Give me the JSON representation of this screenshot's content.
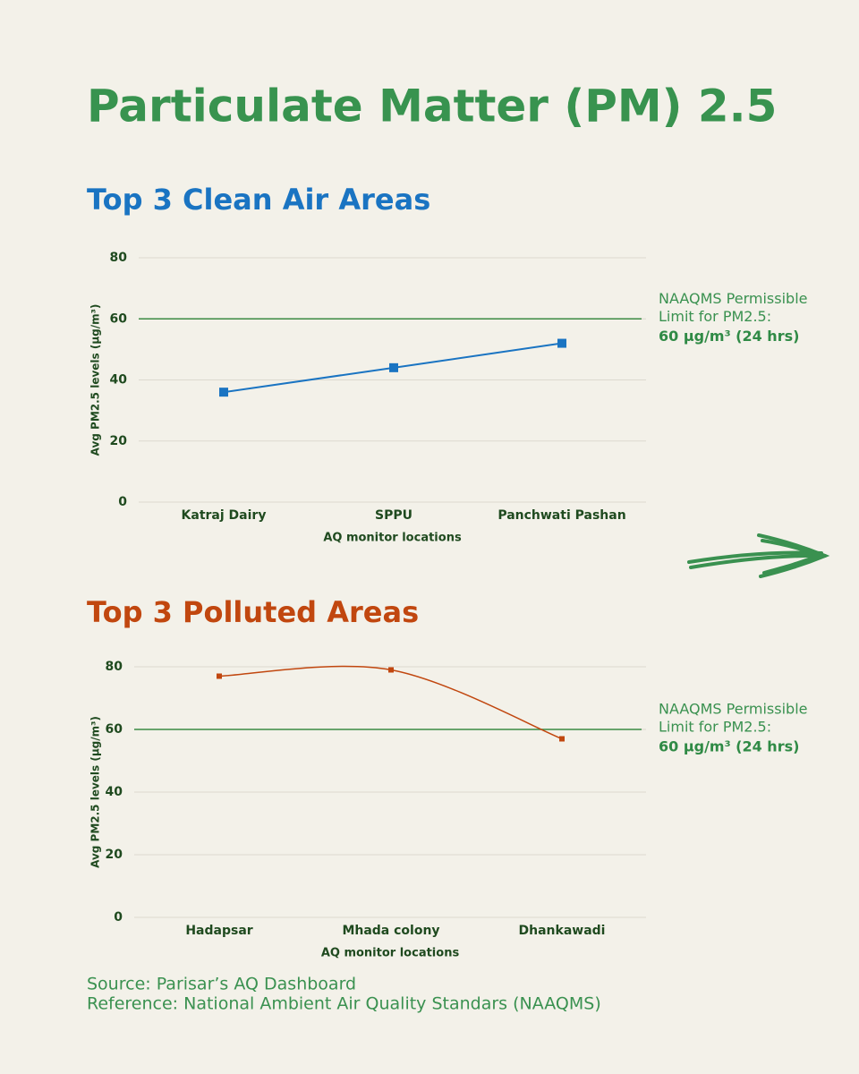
{
  "title": "Particulate Matter (PM) 2.5",
  "source": "Source: Parisar’s AQ Dashboard",
  "reference": "Reference: National Ambient Air Quality Standars (NAAQMS)",
  "chart_data": [
    {
      "type": "line",
      "title": "Top 3 Clean Air Areas",
      "title_color": "#1a74c2",
      "x_label": "AQ monitor locations",
      "y_label": "Avg PM2.5 levels (μg/m³)",
      "categories": [
        "Katraj Dairy",
        "SPPU",
        "Panchwati Pashan"
      ],
      "values": [
        36,
        44,
        52
      ],
      "color": "#1a74c2",
      "smooth": false,
      "ylim": [
        0,
        80
      ],
      "yticks": [
        0,
        20,
        40,
        60,
        80
      ],
      "grid": true,
      "reference_line": {
        "value": 60,
        "color": "#3b8a42",
        "annotation": [
          "NAAQMS Permissible",
          "Limit for PM2.5:"
        ],
        "annotation_value": "60 μg/m³ (24 hrs)"
      }
    },
    {
      "type": "line",
      "title": "Top 3 Polluted Areas",
      "title_color": "#c1470f",
      "x_label": "AQ monitor locations",
      "y_label": "Avg PM2.5 levels (μg/m³)",
      "categories": [
        "Hadapsar",
        "Mhada colony",
        "Dhankawadi"
      ],
      "values": [
        77,
        79,
        57
      ],
      "color": "#c1470f",
      "smooth": true,
      "ylim": [
        0,
        80
      ],
      "yticks": [
        0,
        20,
        40,
        60,
        80
      ],
      "grid": true,
      "reference_line": {
        "value": 60,
        "color": "#3b8a42",
        "annotation": [
          "NAAQMS Permissible",
          "Limit for PM2.5:"
        ],
        "annotation_value": "60 μg/m³ (24 hrs)"
      }
    }
  ]
}
